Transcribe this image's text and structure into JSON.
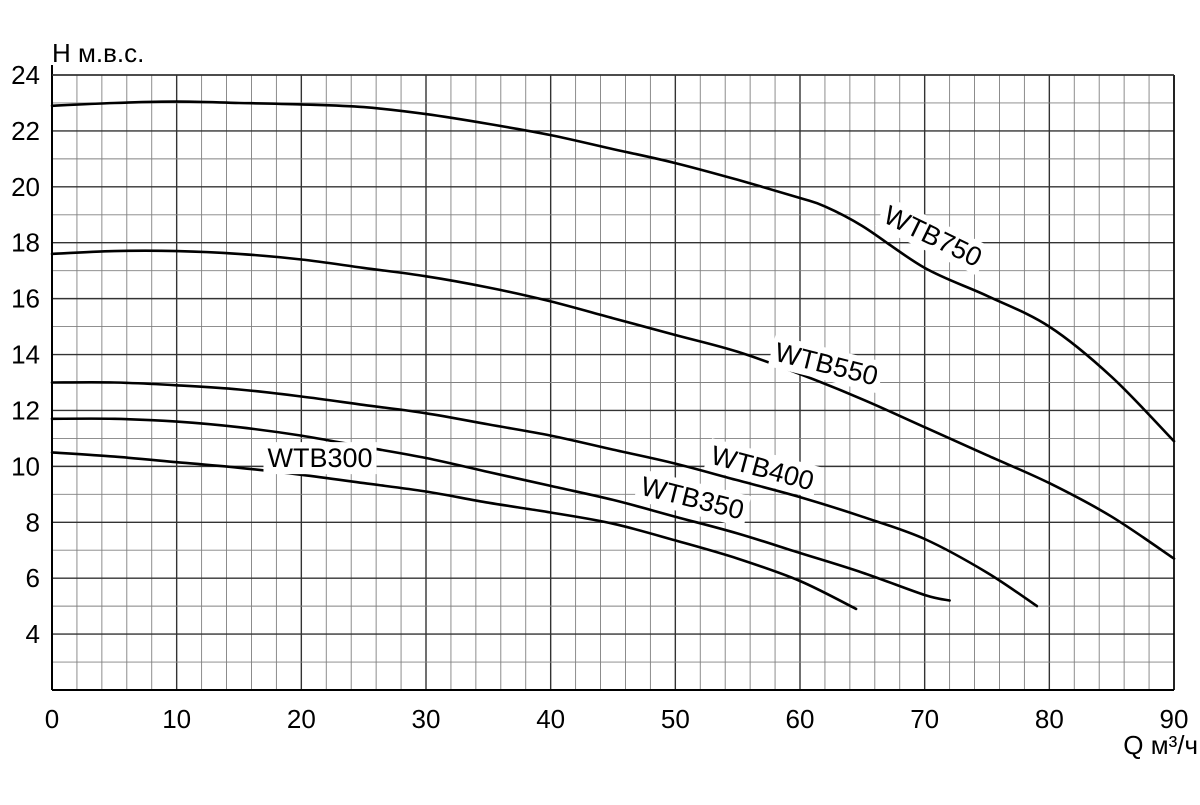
{
  "chart_data": {
    "type": "line",
    "title": "",
    "ylabel": "H м.в.с.",
    "xlabel": "Q м³/ч",
    "xlim": [
      0,
      90
    ],
    "ylim": [
      2,
      24
    ],
    "grid": true,
    "x_ticks": [
      "0",
      "10",
      "20",
      "30",
      "40",
      "50",
      "60",
      "70",
      "80",
      "90"
    ],
    "y_ticks": [
      "4",
      "6",
      "8",
      "10",
      "12",
      "14",
      "16",
      "18",
      "20",
      "22",
      "24"
    ],
    "colors": {
      "line": "#000000",
      "grid_minor": "#808080",
      "grid_major": "#333333",
      "background": "#ffffff"
    },
    "series": [
      {
        "name": "WTB750",
        "x": [
          0,
          5,
          10,
          15,
          20,
          25,
          30,
          35,
          40,
          45,
          50,
          55,
          60,
          62,
          65,
          70,
          75,
          80,
          85,
          90
        ],
        "y": [
          22.9,
          23.0,
          23.05,
          23.0,
          22.95,
          22.85,
          22.6,
          22.25,
          21.85,
          21.35,
          20.85,
          20.25,
          19.6,
          19.3,
          18.6,
          17.1,
          16.1,
          15.0,
          13.2,
          10.9
        ]
      },
      {
        "name": "WTB550",
        "x": [
          0,
          5,
          10,
          15,
          20,
          25,
          30,
          35,
          40,
          45,
          50,
          55,
          60,
          65,
          70,
          75,
          80,
          85,
          90
        ],
        "y": [
          17.6,
          17.7,
          17.7,
          17.6,
          17.4,
          17.1,
          16.8,
          16.4,
          15.9,
          15.3,
          14.7,
          14.1,
          13.3,
          12.4,
          11.4,
          10.4,
          9.4,
          8.2,
          6.7
        ]
      },
      {
        "name": "WTB400",
        "x": [
          0,
          5,
          10,
          15,
          20,
          25,
          30,
          35,
          40,
          45,
          50,
          55,
          60,
          65,
          70,
          75,
          79
        ],
        "y": [
          13.0,
          13.0,
          12.9,
          12.75,
          12.5,
          12.2,
          11.9,
          11.5,
          11.1,
          10.6,
          10.1,
          9.5,
          8.9,
          8.2,
          7.4,
          6.2,
          5.0
        ]
      },
      {
        "name": "WTB350",
        "x": [
          0,
          5,
          10,
          15,
          20,
          25,
          30,
          35,
          40,
          45,
          50,
          55,
          60,
          65,
          70,
          72
        ],
        "y": [
          11.7,
          11.7,
          11.6,
          11.4,
          11.1,
          10.7,
          10.3,
          9.8,
          9.3,
          8.8,
          8.2,
          7.6,
          6.9,
          6.2,
          5.4,
          5.2
        ]
      },
      {
        "name": "WTB300",
        "x": [
          0,
          5,
          10,
          15,
          20,
          25,
          30,
          35,
          40,
          45,
          50,
          55,
          60,
          64.5
        ],
        "y": [
          10.5,
          10.35,
          10.15,
          9.95,
          9.7,
          9.4,
          9.1,
          8.7,
          8.35,
          7.95,
          7.35,
          6.7,
          5.9,
          4.9
        ]
      }
    ]
  }
}
